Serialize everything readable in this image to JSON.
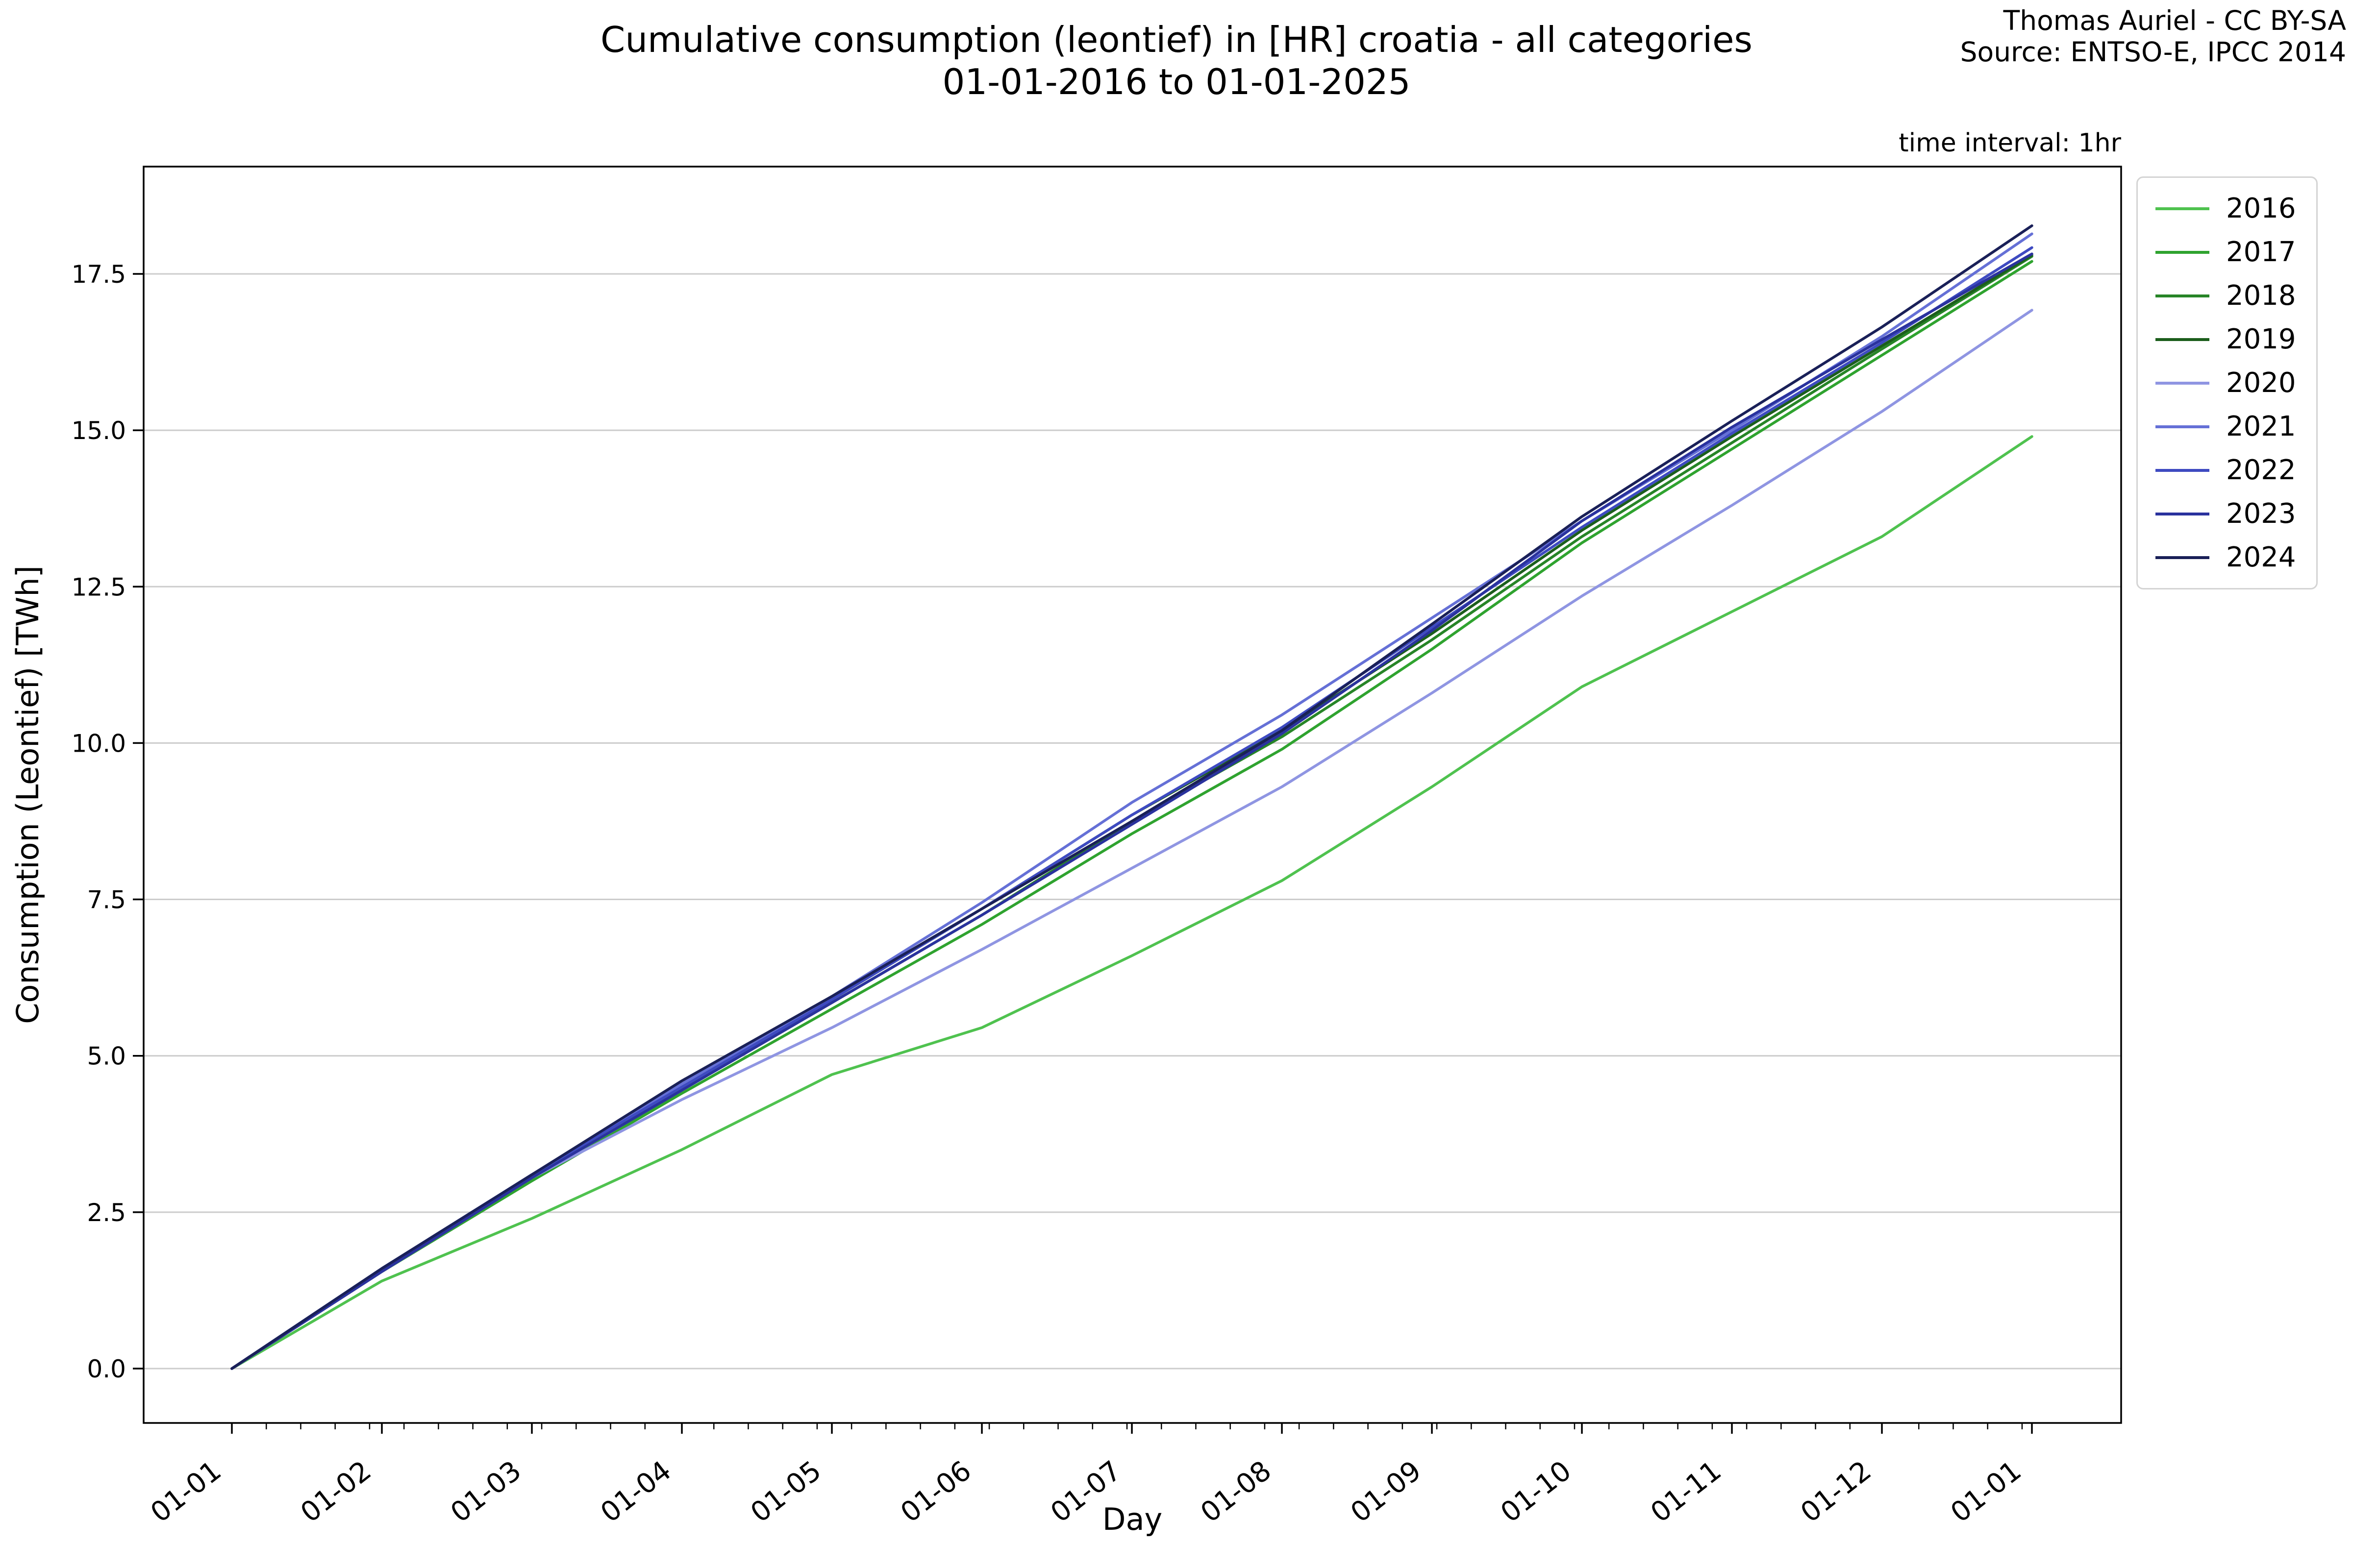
{
  "header": {
    "title_line1": "Cumulative consumption (leontief) in [HR] croatia - all categories",
    "title_line2": "01-01-2016 to 01-01-2025",
    "attribution_line1": "Thomas Auriel - CC BY-SA",
    "attribution_line2": "Source: ENTSO-E, IPCC 2014",
    "annotation": "time interval: 1hr"
  },
  "chart_data": {
    "type": "line",
    "title": "Cumulative consumption (leontief) in [HR] croatia - all categories 01-01-2016 to 01-01-2025",
    "xlabel": "Day",
    "ylabel": "Consumption (Leontief) [TWh]",
    "x_tick_labels": [
      "01-01",
      "01-02",
      "01-03",
      "01-04",
      "01-05",
      "01-06",
      "01-07",
      "01-08",
      "01-09",
      "01-10",
      "01-11",
      "01-12",
      "01-01"
    ],
    "y_ticks": [
      0.0,
      2.5,
      5.0,
      7.5,
      10.0,
      12.5,
      15.0,
      17.5
    ],
    "ylim": [
      -0.9,
      19.2
    ],
    "grid": "horizontal",
    "grid_color": "#cccccc",
    "axis_color": "#000000",
    "legend_position": "right-outside",
    "month_day_counts": [
      31,
      29,
      31,
      30,
      31,
      30,
      31,
      31,
      30,
      31,
      30,
      31
    ],
    "series": [
      {
        "name": "2016",
        "color": "#4fc24f",
        "values": [
          0,
          1.4,
          2.4,
          3.5,
          4.7,
          5.45,
          6.6,
          7.8,
          9.3,
          10.9,
          12.1,
          13.3,
          14.9
        ]
      },
      {
        "name": "2017",
        "color": "#2fa32f",
        "values": [
          0,
          1.55,
          3.0,
          4.4,
          5.75,
          7.1,
          8.55,
          9.9,
          11.5,
          13.2,
          14.7,
          16.2,
          17.7
        ]
      },
      {
        "name": "2018",
        "color": "#278527",
        "values": [
          0,
          1.55,
          3.05,
          4.45,
          5.85,
          7.25,
          8.75,
          10.1,
          11.65,
          13.3,
          14.8,
          16.3,
          17.78
        ]
      },
      {
        "name": "2019",
        "color": "#1c5e1c",
        "values": [
          0,
          1.6,
          3.1,
          4.5,
          5.9,
          7.35,
          8.85,
          10.2,
          11.75,
          13.4,
          14.9,
          16.35,
          17.8
        ]
      },
      {
        "name": "2020",
        "color": "#8f95e2",
        "values": [
          0,
          1.55,
          3.05,
          4.3,
          5.45,
          6.7,
          8.0,
          9.3,
          10.8,
          12.35,
          13.8,
          15.3,
          16.92
        ]
      },
      {
        "name": "2021",
        "color": "#6570d6",
        "values": [
          0,
          1.6,
          3.1,
          4.55,
          5.95,
          7.45,
          9.05,
          10.45,
          12.0,
          13.55,
          15.0,
          16.5,
          18.14
        ]
      },
      {
        "name": "2022",
        "color": "#3e4ac1",
        "values": [
          0,
          1.6,
          3.1,
          4.5,
          5.9,
          7.35,
          8.85,
          10.25,
          11.85,
          13.45,
          14.95,
          16.4,
          17.92
        ]
      },
      {
        "name": "2023",
        "color": "#2a329e",
        "values": [
          0,
          1.55,
          3.05,
          4.45,
          5.85,
          7.25,
          8.7,
          10.15,
          11.8,
          13.55,
          15.05,
          16.45,
          17.82
        ]
      },
      {
        "name": "2024",
        "color": "#1a2058",
        "values": [
          0,
          1.6,
          3.1,
          4.6,
          5.95,
          7.35,
          8.75,
          10.2,
          11.9,
          13.62,
          15.15,
          16.65,
          18.27
        ]
      }
    ]
  }
}
